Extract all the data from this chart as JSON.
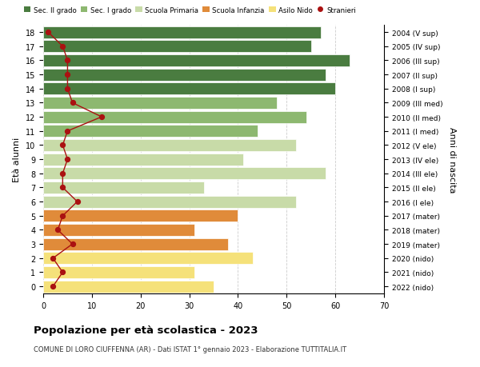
{
  "ages": [
    0,
    1,
    2,
    3,
    4,
    5,
    6,
    7,
    8,
    9,
    10,
    11,
    12,
    13,
    14,
    15,
    16,
    17,
    18
  ],
  "years": [
    "2022 (nido)",
    "2021 (nido)",
    "2020 (nido)",
    "2019 (mater)",
    "2018 (mater)",
    "2017 (mater)",
    "2016 (I ele)",
    "2015 (II ele)",
    "2014 (III ele)",
    "2013 (IV ele)",
    "2012 (V ele)",
    "2011 (I med)",
    "2010 (II med)",
    "2009 (III med)",
    "2008 (I sup)",
    "2007 (II sup)",
    "2006 (III sup)",
    "2005 (IV sup)",
    "2004 (V sup)"
  ],
  "bar_values": [
    35,
    31,
    43,
    38,
    31,
    40,
    52,
    33,
    58,
    41,
    52,
    44,
    54,
    48,
    60,
    58,
    63,
    55,
    57
  ],
  "stranieri": [
    2,
    4,
    2,
    6,
    3,
    4,
    7,
    4,
    4,
    5,
    4,
    5,
    12,
    6,
    5,
    5,
    5,
    4,
    1
  ],
  "bar_colors": [
    "#f5e17a",
    "#f5e17a",
    "#f5e17a",
    "#e08b3a",
    "#e08b3a",
    "#e08b3a",
    "#c8dba8",
    "#c8dba8",
    "#c8dba8",
    "#c8dba8",
    "#c8dba8",
    "#8db870",
    "#8db870",
    "#8db870",
    "#4a7c40",
    "#4a7c40",
    "#4a7c40",
    "#4a7c40",
    "#4a7c40"
  ],
  "legend_labels": [
    "Sec. II grado",
    "Sec. I grado",
    "Scuola Primaria",
    "Scuola Infanzia",
    "Asilo Nido",
    "Stranieri"
  ],
  "legend_colors": [
    "#4a7c40",
    "#8db870",
    "#c8dba8",
    "#e08b3a",
    "#f5e17a",
    "#aa1111"
  ],
  "ylabel": "Età alunni",
  "ylabel_right": "Anni di nascita",
  "title": "Popolazione per età scolastica - 2023",
  "subtitle": "COMUNE DI LORO CIUFFENNA (AR) - Dati ISTAT 1° gennaio 2023 - Elaborazione TUTTITALIA.IT",
  "xlim": [
    0,
    70
  ],
  "dot_color": "#aa1111",
  "background_color": "#ffffff",
  "grid_color": "#cccccc"
}
